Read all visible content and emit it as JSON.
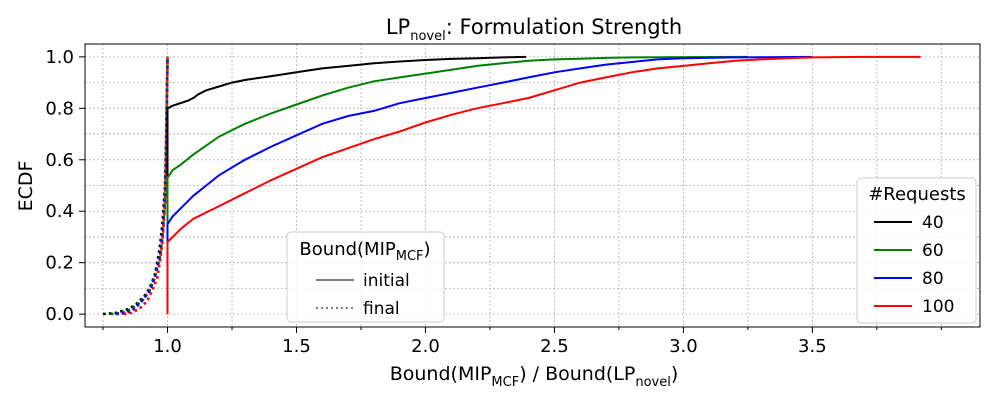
{
  "chart_data": {
    "type": "line",
    "title": {
      "main": "LP",
      "sub": "novel",
      "rest": ": Formulation Strength"
    },
    "xlabel": {
      "p1": "Bound(MIP",
      "s1": "MCF",
      "p2": ") / Bound(LP",
      "s2": "novel",
      "p3": ")"
    },
    "ylabel": "ECDF",
    "xlim": [
      0.68,
      4.15
    ],
    "ylim": [
      -0.05,
      1.05
    ],
    "xticks": [
      1.0,
      1.5,
      2.0,
      2.5,
      3.0,
      3.5
    ],
    "xtick_labels": [
      "1.0",
      "1.5",
      "2.0",
      "2.5",
      "3.0",
      "3.5"
    ],
    "yticks": [
      0.0,
      0.2,
      0.4,
      0.6,
      0.8,
      1.0
    ],
    "ytick_labels": [
      "0.0",
      "0.2",
      "0.4",
      "0.6",
      "0.8",
      "1.0"
    ],
    "grid": true,
    "series": [
      {
        "name": "40",
        "color": "#000000",
        "initial": [
          [
            1.0,
            0.0
          ],
          [
            1.0,
            0.8
          ],
          [
            1.02,
            0.81
          ],
          [
            1.05,
            0.82
          ],
          [
            1.08,
            0.83
          ],
          [
            1.1,
            0.84
          ],
          [
            1.12,
            0.855
          ],
          [
            1.15,
            0.87
          ],
          [
            1.2,
            0.885
          ],
          [
            1.25,
            0.9
          ],
          [
            1.3,
            0.91
          ],
          [
            1.4,
            0.925
          ],
          [
            1.5,
            0.94
          ],
          [
            1.6,
            0.955
          ],
          [
            1.7,
            0.965
          ],
          [
            1.8,
            0.975
          ],
          [
            1.9,
            0.982
          ],
          [
            2.0,
            0.988
          ],
          [
            2.1,
            0.992
          ],
          [
            2.2,
            0.995
          ],
          [
            2.3,
            0.998
          ],
          [
            2.39,
            1.0
          ]
        ],
        "final": [
          [
            0.75,
            0.0
          ],
          [
            0.8,
            0.005
          ],
          [
            0.85,
            0.02
          ],
          [
            0.88,
            0.04
          ],
          [
            0.91,
            0.07
          ],
          [
            0.93,
            0.1
          ],
          [
            0.95,
            0.15
          ],
          [
            0.96,
            0.2
          ],
          [
            0.97,
            0.26
          ],
          [
            0.98,
            0.35
          ],
          [
            0.99,
            0.5
          ],
          [
            0.995,
            0.7
          ],
          [
            1.0,
            1.0
          ]
        ]
      },
      {
        "name": "60",
        "color": "#008000",
        "initial": [
          [
            1.0,
            0.0
          ],
          [
            1.0,
            0.53
          ],
          [
            1.02,
            0.56
          ],
          [
            1.05,
            0.58
          ],
          [
            1.1,
            0.62
          ],
          [
            1.15,
            0.655
          ],
          [
            1.2,
            0.69
          ],
          [
            1.3,
            0.74
          ],
          [
            1.4,
            0.78
          ],
          [
            1.5,
            0.815
          ],
          [
            1.6,
            0.85
          ],
          [
            1.7,
            0.88
          ],
          [
            1.8,
            0.905
          ],
          [
            1.9,
            0.92
          ],
          [
            2.0,
            0.935
          ],
          [
            2.1,
            0.95
          ],
          [
            2.2,
            0.965
          ],
          [
            2.3,
            0.975
          ],
          [
            2.4,
            0.985
          ],
          [
            2.5,
            0.99
          ],
          [
            2.6,
            0.993
          ],
          [
            2.7,
            0.996
          ],
          [
            2.8,
            0.998
          ],
          [
            3.0,
            0.999
          ],
          [
            3.25,
            1.0
          ]
        ],
        "final": [
          [
            0.78,
            0.0
          ],
          [
            0.82,
            0.005
          ],
          [
            0.86,
            0.02
          ],
          [
            0.9,
            0.05
          ],
          [
            0.93,
            0.09
          ],
          [
            0.95,
            0.14
          ],
          [
            0.97,
            0.22
          ],
          [
            0.98,
            0.3
          ],
          [
            0.99,
            0.45
          ],
          [
            0.995,
            0.65
          ],
          [
            1.0,
            1.0
          ]
        ]
      },
      {
        "name": "80",
        "color": "#0000ff",
        "initial": [
          [
            1.0,
            0.0
          ],
          [
            1.0,
            0.35
          ],
          [
            1.02,
            0.38
          ],
          [
            1.05,
            0.41
          ],
          [
            1.1,
            0.46
          ],
          [
            1.15,
            0.5
          ],
          [
            1.2,
            0.54
          ],
          [
            1.3,
            0.6
          ],
          [
            1.4,
            0.65
          ],
          [
            1.5,
            0.695
          ],
          [
            1.6,
            0.74
          ],
          [
            1.7,
            0.77
          ],
          [
            1.8,
            0.79
          ],
          [
            1.9,
            0.82
          ],
          [
            2.0,
            0.84
          ],
          [
            2.1,
            0.86
          ],
          [
            2.2,
            0.88
          ],
          [
            2.3,
            0.9
          ],
          [
            2.4,
            0.92
          ],
          [
            2.5,
            0.94
          ],
          [
            2.6,
            0.955
          ],
          [
            2.7,
            0.97
          ],
          [
            2.8,
            0.98
          ],
          [
            2.9,
            0.99
          ],
          [
            3.0,
            0.995
          ],
          [
            3.2,
            0.998
          ],
          [
            3.5,
            1.0
          ]
        ],
        "final": [
          [
            0.8,
            0.0
          ],
          [
            0.84,
            0.005
          ],
          [
            0.87,
            0.02
          ],
          [
            0.9,
            0.05
          ],
          [
            0.93,
            0.09
          ],
          [
            0.95,
            0.14
          ],
          [
            0.97,
            0.22
          ],
          [
            0.98,
            0.3
          ],
          [
            0.99,
            0.45
          ],
          [
            0.995,
            0.65
          ],
          [
            1.0,
            1.0
          ]
        ]
      },
      {
        "name": "100",
        "color": "#ff0000",
        "initial": [
          [
            1.0,
            0.0
          ],
          [
            1.0,
            0.28
          ],
          [
            1.02,
            0.3
          ],
          [
            1.05,
            0.33
          ],
          [
            1.1,
            0.37
          ],
          [
            1.2,
            0.42
          ],
          [
            1.3,
            0.47
          ],
          [
            1.4,
            0.52
          ],
          [
            1.5,
            0.565
          ],
          [
            1.6,
            0.61
          ],
          [
            1.7,
            0.645
          ],
          [
            1.8,
            0.68
          ],
          [
            1.9,
            0.71
          ],
          [
            2.0,
            0.745
          ],
          [
            2.1,
            0.775
          ],
          [
            2.2,
            0.8
          ],
          [
            2.3,
            0.82
          ],
          [
            2.4,
            0.84
          ],
          [
            2.5,
            0.87
          ],
          [
            2.6,
            0.9
          ],
          [
            2.7,
            0.92
          ],
          [
            2.8,
            0.94
          ],
          [
            2.9,
            0.955
          ],
          [
            3.0,
            0.965
          ],
          [
            3.1,
            0.975
          ],
          [
            3.2,
            0.985
          ],
          [
            3.3,
            0.99
          ],
          [
            3.4,
            0.995
          ],
          [
            3.5,
            0.998
          ],
          [
            3.7,
            1.0
          ],
          [
            3.92,
            1.0
          ]
        ],
        "final": [
          [
            0.83,
            0.0
          ],
          [
            0.86,
            0.005
          ],
          [
            0.89,
            0.02
          ],
          [
            0.92,
            0.05
          ],
          [
            0.94,
            0.09
          ],
          [
            0.96,
            0.14
          ],
          [
            0.97,
            0.2
          ],
          [
            0.98,
            0.28
          ],
          [
            0.99,
            0.42
          ],
          [
            0.995,
            0.62
          ],
          [
            1.0,
            1.0
          ]
        ]
      }
    ],
    "legend_requests": {
      "title": "#Requests",
      "position": "lower-right",
      "entries": [
        "40",
        "60",
        "80",
        "100"
      ]
    },
    "legend_bound": {
      "title": {
        "main": "Bound(MIP",
        "sub": "MCF",
        "rest": ")"
      },
      "position": "lower-center",
      "entries": [
        {
          "label": "initial",
          "style": "solid",
          "color": "#808080"
        },
        {
          "label": "final",
          "style": "dotted",
          "color": "#808080"
        }
      ]
    }
  }
}
